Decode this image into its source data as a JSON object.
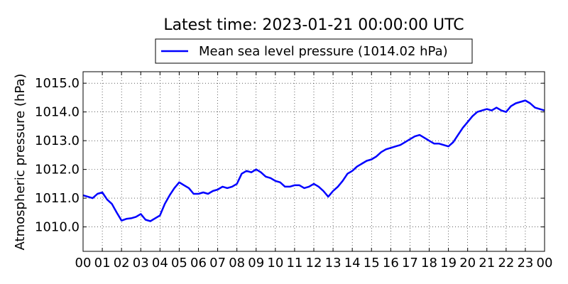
{
  "chart_data": {
    "type": "line",
    "title": "Latest time: 2023-01-21 00:00:00 UTC",
    "xlabel": "",
    "ylabel": "Atmospheric pressure (hPa)",
    "legend": {
      "placement": "top-center",
      "entries": [
        "Mean sea level pressure (1014.02 hPa)"
      ]
    },
    "grid": true,
    "xlim": [
      0,
      24
    ],
    "ylim": [
      1009.15,
      1015.4
    ],
    "x_ticks": [
      "00",
      "01",
      "02",
      "03",
      "04",
      "05",
      "06",
      "07",
      "08",
      "09",
      "10",
      "11",
      "12",
      "13",
      "14",
      "15",
      "16",
      "17",
      "18",
      "19",
      "20",
      "21",
      "22",
      "23",
      "00"
    ],
    "y_ticks": [
      "1010.0",
      "1011.0",
      "1012.0",
      "1013.0",
      "1014.0",
      "1015.0"
    ],
    "series": [
      {
        "name": "Mean sea level pressure (1014.02 hPa)",
        "color": "#0000ff",
        "x": [
          0,
          0.25,
          0.5,
          0.75,
          1.0,
          1.25,
          1.5,
          1.75,
          2.0,
          2.25,
          2.5,
          2.75,
          3.0,
          3.25,
          3.5,
          3.75,
          4.0,
          4.25,
          4.5,
          4.75,
          5.0,
          5.25,
          5.5,
          5.75,
          6.0,
          6.25,
          6.5,
          6.75,
          7.0,
          7.25,
          7.5,
          7.75,
          8.0,
          8.25,
          8.5,
          8.75,
          9.0,
          9.25,
          9.5,
          9.75,
          10.0,
          10.25,
          10.5,
          10.75,
          11.0,
          11.25,
          11.5,
          11.75,
          12.0,
          12.25,
          12.5,
          12.75,
          13.0,
          13.25,
          13.5,
          13.75,
          14.0,
          14.25,
          14.5,
          14.75,
          15.0,
          15.25,
          15.5,
          15.75,
          16.0,
          16.25,
          16.5,
          16.75,
          17.0,
          17.25,
          17.5,
          17.75,
          18.0,
          18.25,
          18.5,
          18.75,
          19.0,
          19.25,
          19.5,
          19.75,
          20.0,
          20.25,
          20.5,
          20.75,
          21.0,
          21.25,
          21.5,
          21.75,
          22.0,
          22.25,
          22.5,
          22.75,
          23.0,
          23.25,
          23.5,
          23.75,
          24.0
        ],
        "values": [
          1011.1,
          1011.05,
          1011.0,
          1011.15,
          1011.2,
          1010.95,
          1010.8,
          1010.5,
          1010.22,
          1010.28,
          1010.3,
          1010.35,
          1010.45,
          1010.25,
          1010.2,
          1010.3,
          1010.4,
          1010.8,
          1011.1,
          1011.35,
          1011.55,
          1011.45,
          1011.35,
          1011.15,
          1011.15,
          1011.2,
          1011.15,
          1011.25,
          1011.3,
          1011.4,
          1011.35,
          1011.4,
          1011.5,
          1011.85,
          1011.95,
          1011.9,
          1012.0,
          1011.9,
          1011.75,
          1011.7,
          1011.6,
          1011.55,
          1011.4,
          1011.4,
          1011.45,
          1011.45,
          1011.35,
          1011.4,
          1011.5,
          1011.4,
          1011.25,
          1011.05,
          1011.25,
          1011.4,
          1011.6,
          1011.85,
          1011.95,
          1012.1,
          1012.2,
          1012.3,
          1012.35,
          1012.45,
          1012.6,
          1012.7,
          1012.75,
          1012.8,
          1012.85,
          1012.95,
          1013.05,
          1013.15,
          1013.2,
          1013.1,
          1013.0,
          1012.9,
          1012.9,
          1012.85,
          1012.8,
          1012.95,
          1013.2,
          1013.45,
          1013.65,
          1013.85,
          1014.0,
          1014.05,
          1014.1,
          1014.05,
          1014.15,
          1014.05,
          1014.0,
          1014.2,
          1014.3,
          1014.35,
          1014.4,
          1014.3,
          1014.15,
          1014.1,
          1014.05
        ]
      }
    ]
  }
}
